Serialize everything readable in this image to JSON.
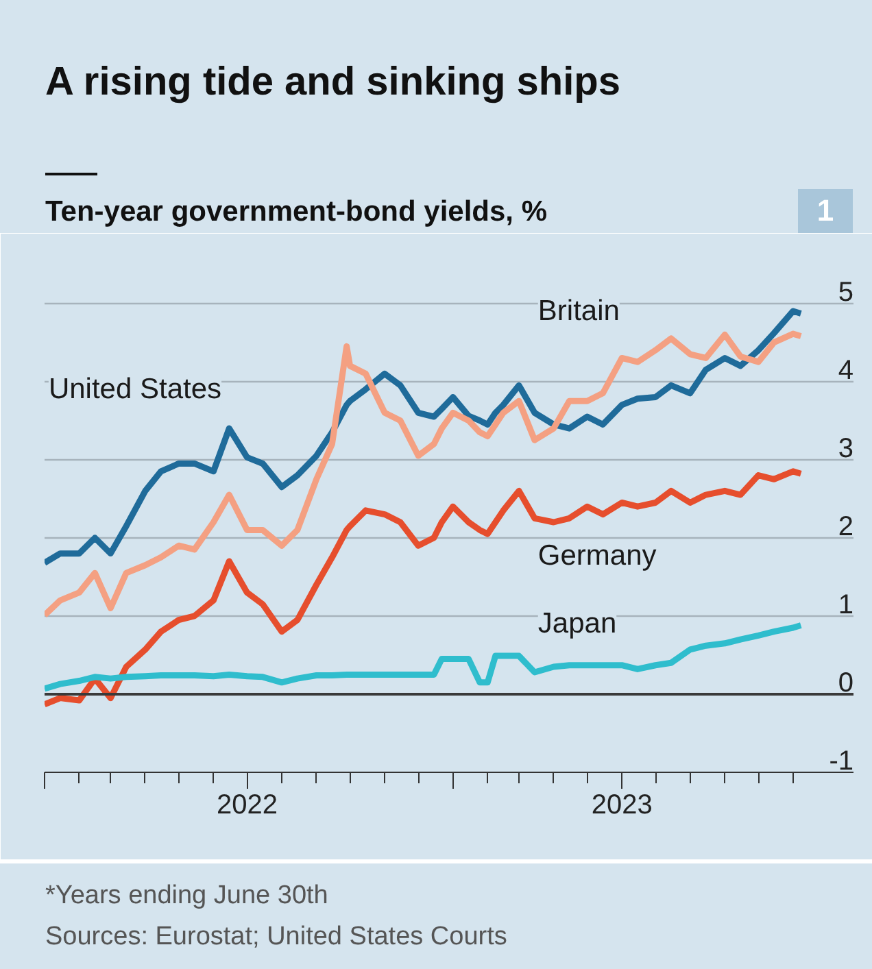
{
  "chart_data": {
    "type": "line",
    "title": "A rising tide and sinking ships",
    "subtitle": "Ten-year government-bond yields, %",
    "annotations": [
      "1",
      "*Years ending June 30th",
      "Sources: Eurostat; United States Courts"
    ],
    "x": [
      "2022-01-01",
      "2022-01-15",
      "2022-02-01",
      "2022-02-15",
      "2022-03-01",
      "2022-03-15",
      "2022-04-01",
      "2022-04-15",
      "2022-05-01",
      "2022-05-15",
      "2022-06-01",
      "2022-06-15",
      "2022-07-01",
      "2022-07-15",
      "2022-08-01",
      "2022-08-15",
      "2022-09-01",
      "2022-09-15",
      "2022-09-28",
      "2022-10-01",
      "2022-10-15",
      "2022-11-01",
      "2022-11-15",
      "2022-12-01",
      "2022-12-15",
      "2022-12-22",
      "2023-01-01",
      "2023-01-15",
      "2023-01-25",
      "2023-02-01",
      "2023-02-08",
      "2023-02-15",
      "2023-03-01",
      "2023-03-15",
      "2023-04-01",
      "2023-04-15",
      "2023-05-01",
      "2023-05-15",
      "2023-06-01",
      "2023-06-15",
      "2023-07-01",
      "2023-07-15",
      "2023-08-01",
      "2023-08-15",
      "2023-09-01",
      "2023-09-15",
      "2023-10-01",
      "2023-10-15",
      "2023-11-01",
      "2023-11-08"
    ],
    "series": [
      {
        "name": "United States",
        "color": "#1f6b9a",
        "values": [
          1.68,
          1.8,
          1.8,
          2.0,
          1.8,
          2.15,
          2.6,
          2.85,
          2.95,
          2.95,
          2.85,
          3.4,
          3.03,
          2.95,
          2.65,
          2.8,
          3.05,
          3.35,
          3.7,
          3.75,
          3.9,
          4.1,
          3.95,
          3.6,
          3.55,
          3.65,
          3.8,
          3.56,
          3.5,
          3.45,
          3.6,
          3.7,
          3.95,
          3.6,
          3.45,
          3.4,
          3.55,
          3.45,
          3.7,
          3.78,
          3.8,
          3.95,
          3.85,
          4.15,
          4.3,
          4.2,
          4.4,
          4.62,
          4.9,
          4.87
        ]
      },
      {
        "name": "Britain",
        "color": "#f4a082",
        "values": [
          1.01,
          1.2,
          1.3,
          1.55,
          1.1,
          1.55,
          1.65,
          1.75,
          1.9,
          1.85,
          2.2,
          2.55,
          2.1,
          2.1,
          1.9,
          2.1,
          2.75,
          3.2,
          4.45,
          4.2,
          4.1,
          3.6,
          3.5,
          3.05,
          3.2,
          3.4,
          3.6,
          3.5,
          3.35,
          3.3,
          3.45,
          3.6,
          3.75,
          3.25,
          3.4,
          3.75,
          3.75,
          3.85,
          4.3,
          4.25,
          4.4,
          4.55,
          4.35,
          4.3,
          4.6,
          4.32,
          4.25,
          4.5,
          4.61,
          4.58
        ]
      },
      {
        "name": "Germany",
        "color": "#e64e2d",
        "values": [
          -0.13,
          -0.05,
          -0.08,
          0.2,
          -0.05,
          0.35,
          0.57,
          0.8,
          0.95,
          1.0,
          1.2,
          1.7,
          1.3,
          1.15,
          0.8,
          0.95,
          1.4,
          1.75,
          2.1,
          2.15,
          2.35,
          2.3,
          2.2,
          1.9,
          2.0,
          2.2,
          2.4,
          2.2,
          2.1,
          2.05,
          2.2,
          2.35,
          2.6,
          2.25,
          2.2,
          2.25,
          2.4,
          2.3,
          2.45,
          2.4,
          2.45,
          2.6,
          2.45,
          2.55,
          2.6,
          2.55,
          2.8,
          2.75,
          2.85,
          2.82
        ]
      },
      {
        "name": "Japan",
        "color": "#2fbdcd",
        "values": [
          0.07,
          0.13,
          0.17,
          0.22,
          0.2,
          0.22,
          0.23,
          0.24,
          0.24,
          0.24,
          0.23,
          0.25,
          0.23,
          0.22,
          0.15,
          0.2,
          0.24,
          0.24,
          0.25,
          0.25,
          0.25,
          0.25,
          0.25,
          0.25,
          0.25,
          0.45,
          0.45,
          0.45,
          0.15,
          0.15,
          0.49,
          0.49,
          0.49,
          0.28,
          0.35,
          0.37,
          0.37,
          0.37,
          0.37,
          0.32,
          0.37,
          0.4,
          0.57,
          0.62,
          0.65,
          0.7,
          0.75,
          0.8,
          0.85,
          0.88
        ]
      }
    ],
    "xlim": [
      "2022-01-01",
      "2023-12-25"
    ],
    "xticks": [
      {
        "value": "2022-01-01",
        "label": null
      },
      {
        "value": "2022-02-01",
        "label": null
      },
      {
        "value": "2022-03-01",
        "label": null
      },
      {
        "value": "2022-04-01",
        "label": null
      },
      {
        "value": "2022-05-01",
        "label": null
      },
      {
        "value": "2022-06-01",
        "label": null
      },
      {
        "value": "2022-07-01",
        "label": "2022"
      },
      {
        "value": "2022-08-01",
        "label": null
      },
      {
        "value": "2022-09-01",
        "label": null
      },
      {
        "value": "2022-10-01",
        "label": null
      },
      {
        "value": "2022-11-01",
        "label": null
      },
      {
        "value": "2022-12-01",
        "label": null
      },
      {
        "value": "2023-01-01",
        "label": null
      },
      {
        "value": "2023-02-01",
        "label": null
      },
      {
        "value": "2023-03-01",
        "label": null
      },
      {
        "value": "2023-04-01",
        "label": null
      },
      {
        "value": "2023-05-01",
        "label": null
      },
      {
        "value": "2023-06-01",
        "label": "2023"
      },
      {
        "value": "2023-07-01",
        "label": null
      },
      {
        "value": "2023-08-01",
        "label": null
      },
      {
        "value": "2023-09-01",
        "label": null
      },
      {
        "value": "2023-10-01",
        "label": null
      },
      {
        "value": "2023-11-01",
        "label": null
      }
    ],
    "ylim": [
      -1,
      5.4
    ],
    "yticks": [
      -1,
      0,
      1,
      2,
      3,
      4,
      5
    ],
    "grid": "y",
    "ref_lines": [
      {
        "axis": "y",
        "value": 0,
        "color": "#3a3a3a"
      }
    ]
  }
}
